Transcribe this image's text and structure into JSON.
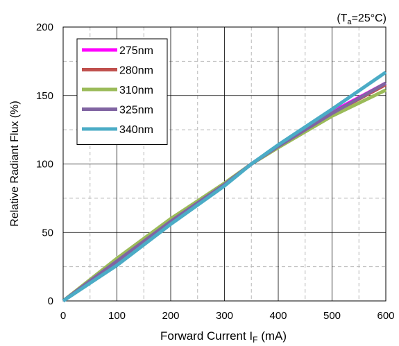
{
  "chart_data": {
    "type": "line",
    "condition": {
      "prefix": "(T",
      "sub": "a",
      "suffix": "=25°C)"
    },
    "xlabel": {
      "main": "Forward Current I",
      "sub": "F",
      "suffix": " (mA)"
    },
    "ylabel": "Relative Radiant Flux (%)",
    "xlim": [
      0,
      600
    ],
    "ylim": [
      0,
      200
    ],
    "x_ticks": [
      0,
      100,
      200,
      300,
      400,
      500,
      600
    ],
    "y_ticks": [
      0,
      50,
      100,
      150,
      200
    ],
    "x_minor_dashed": [
      50,
      150,
      250,
      350,
      450,
      550
    ],
    "y_minor_dashed": [
      25,
      75,
      125,
      175
    ],
    "legend_position": "top-left",
    "series": [
      {
        "name": "275nm",
        "color": "#ff00ff",
        "points": [
          [
            0,
            0
          ],
          [
            100,
            28
          ],
          [
            200,
            58
          ],
          [
            300,
            85
          ],
          [
            350,
            100
          ],
          [
            400,
            113
          ],
          [
            500,
            138
          ],
          [
            600,
            159
          ]
        ]
      },
      {
        "name": "280nm",
        "color": "#c0504d",
        "points": [
          [
            0,
            0
          ],
          [
            100,
            28
          ],
          [
            200,
            58
          ],
          [
            300,
            85
          ],
          [
            350,
            100
          ],
          [
            400,
            113
          ],
          [
            500,
            137
          ],
          [
            600,
            158
          ]
        ]
      },
      {
        "name": "310nm",
        "color": "#9bbb59",
        "points": [
          [
            0,
            0
          ],
          [
            100,
            31
          ],
          [
            200,
            60
          ],
          [
            300,
            86
          ],
          [
            350,
            100
          ],
          [
            400,
            112
          ],
          [
            500,
            135
          ],
          [
            600,
            154
          ]
        ]
      },
      {
        "name": "325nm",
        "color": "#8064a2",
        "points": [
          [
            0,
            0
          ],
          [
            100,
            29
          ],
          [
            200,
            58
          ],
          [
            300,
            85
          ],
          [
            350,
            100
          ],
          [
            400,
            113
          ],
          [
            500,
            137
          ],
          [
            600,
            159
          ]
        ]
      },
      {
        "name": "340nm",
        "color": "#4bacc6",
        "points": [
          [
            0,
            0
          ],
          [
            100,
            26
          ],
          [
            200,
            56
          ],
          [
            300,
            84
          ],
          [
            350,
            100
          ],
          [
            400,
            114
          ],
          [
            500,
            140
          ],
          [
            600,
            167
          ]
        ]
      }
    ]
  }
}
